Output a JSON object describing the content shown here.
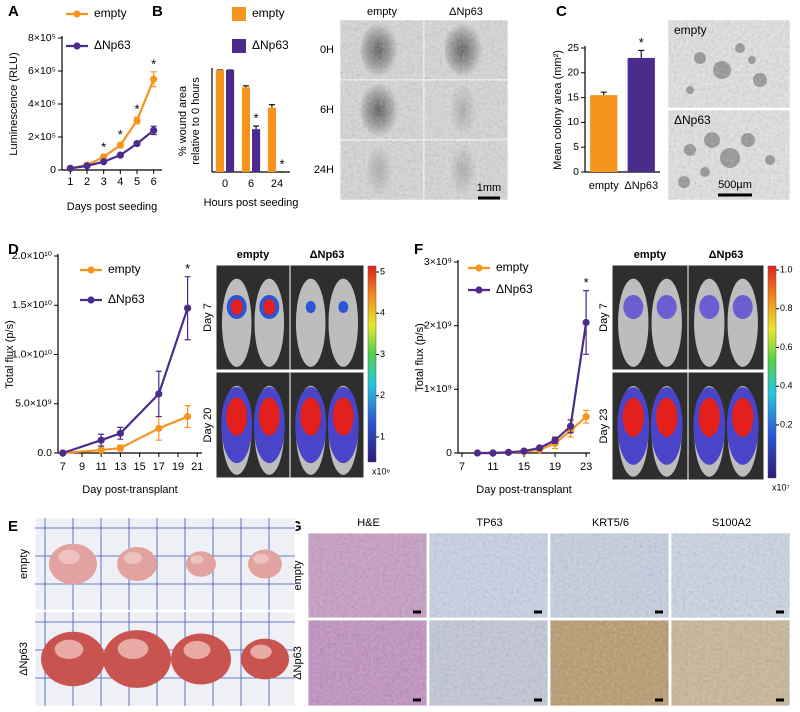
{
  "panel_labels": [
    "A",
    "B",
    "C",
    "D",
    "E",
    "F",
    "G"
  ],
  "chart_data": [
    {
      "type": "line",
      "xlabel": "Days post seeding",
      "ylabel": "Luminescence (RLU)",
      "x": [
        1,
        2,
        3,
        4,
        5,
        6
      ],
      "xlim": [
        0.5,
        6.5
      ],
      "xticks": [
        1,
        2,
        3,
        4,
        5,
        6
      ],
      "ylim": [
        0,
        800000
      ],
      "yticks": [
        0,
        {
          "value": 200000,
          "label": "2×10⁵"
        },
        {
          "value": 400000,
          "label": "4×10⁵"
        },
        {
          "value": 600000,
          "label": "6×10⁵"
        },
        {
          "value": 800000,
          "label": "8×10⁵"
        }
      ],
      "series": [
        {
          "name": "empty",
          "color": "#f7941d",
          "values": [
            10000,
            30000,
            80000,
            150000,
            300000,
            550000
          ],
          "errors": [
            3000,
            5000,
            10000,
            15000,
            20000,
            45000
          ],
          "significance": [
            null,
            null,
            "*",
            "*",
            "*",
            "*"
          ]
        },
        {
          "name": "ΔNp63",
          "color": "#4b2c8c",
          "values": [
            10000,
            25000,
            50000,
            90000,
            160000,
            240000
          ],
          "errors": [
            2000,
            3000,
            5000,
            8000,
            12000,
            25000
          ]
        }
      ]
    },
    {
      "type": "bar",
      "xlabel": "Hours post seeding",
      "ylabel": [
        "% wound area",
        "relative to 0 hours"
      ],
      "categories": [
        "0",
        "6",
        "24"
      ],
      "ylim": [
        0,
        100
      ],
      "series": [
        {
          "name": "empty",
          "color": "#f7941d",
          "values": [
            100,
            83,
            63
          ],
          "errors": [
            0,
            1.5,
            3
          ]
        },
        {
          "name": "ΔNp63",
          "color": "#4b2c8c",
          "values": [
            100,
            42,
            0
          ],
          "errors": [
            0,
            3,
            0
          ],
          "significance": [
            null,
            "*",
            "*"
          ]
        }
      ]
    },
    {
      "type": "bar",
      "ylabel": "Mean colony area (mm²)",
      "categories": [
        "empty",
        "ΔNp63"
      ],
      "values": [
        15.5,
        23
      ],
      "errors": [
        0.6,
        1.5
      ],
      "colors": [
        "#f7941d",
        "#4b2c8c"
      ],
      "significance": [
        null,
        "*"
      ],
      "ylim": [
        0,
        25
      ],
      "yticks": [
        0,
        5,
        10,
        15,
        20,
        25
      ]
    },
    {
      "type": "line",
      "xlabel": "Day post-transplant",
      "ylabel": "Total flux (p/s)",
      "x": [
        7,
        11,
        13,
        17,
        20
      ],
      "xlim": [
        6.5,
        21.5
      ],
      "xticks": [
        7,
        9,
        11,
        13,
        15,
        17,
        19,
        21
      ],
      "ylim": [
        0,
        20000000000
      ],
      "yticks": [
        {
          "value": 0,
          "label": "0.0"
        },
        {
          "value": 5000000000,
          "label": "5.0×10⁹"
        },
        {
          "value": 10000000000,
          "label": "1.0×10¹⁰"
        },
        {
          "value": 15000000000,
          "label": "1.5×10¹⁰"
        },
        {
          "value": 20000000000,
          "label": "2.0×10¹⁰"
        }
      ],
      "series": [
        {
          "name": "empty",
          "color": "#f7941d",
          "values": [
            0,
            300000000,
            500000000,
            2500000000,
            3700000000
          ],
          "errors": [
            0,
            200000000,
            300000000,
            1200000000,
            1100000000
          ]
        },
        {
          "name": "ΔNp63",
          "color": "#4b2c8c",
          "values": [
            0,
            1300000000,
            2000000000,
            6000000000,
            14700000000
          ],
          "errors": [
            0,
            600000000,
            600000000,
            2300000000,
            3200000000
          ],
          "significance": [
            null,
            null,
            null,
            null,
            "*"
          ]
        }
      ]
    },
    {
      "type": "line",
      "xlabel": "Day post-transplant",
      "ylabel": "Total flux (p/s)",
      "x": [
        9,
        11,
        13,
        15,
        17,
        19,
        21,
        23
      ],
      "xlim": [
        6.5,
        23.5
      ],
      "xticks": [
        7,
        11,
        15,
        19,
        23
      ],
      "ylim": [
        0,
        3000000000
      ],
      "yticks": [
        0,
        {
          "value": 1000000000,
          "label": "1×10⁹"
        },
        {
          "value": 2000000000,
          "label": "2×10⁹"
        },
        {
          "value": 3000000000,
          "label": "3×10⁹"
        }
      ],
      "series": [
        {
          "name": "empty",
          "color": "#f7941d",
          "values": [
            0,
            0,
            10000000,
            20000000,
            50000000,
            150000000,
            350000000,
            570000000
          ],
          "errors": [
            0,
            0,
            0,
            10000000,
            30000000,
            80000000,
            100000000,
            100000000
          ]
        },
        {
          "name": "ΔNp63",
          "color": "#4b2c8c",
          "values": [
            0,
            0,
            10000000,
            30000000,
            80000000,
            200000000,
            420000000,
            2050000000
          ],
          "errors": [
            0,
            0,
            0,
            10000000,
            20000000,
            50000000,
            100000000,
            500000000
          ],
          "significance": [
            null,
            null,
            null,
            null,
            null,
            null,
            null,
            "*"
          ]
        }
      ]
    }
  ],
  "images": {
    "wound": {
      "columns": [
        "empty",
        "ΔNp63"
      ],
      "rows": [
        "0H",
        "6H",
        "24H"
      ],
      "scale": "1mm"
    },
    "colony": {
      "panels": [
        "empty",
        "ΔNp63"
      ],
      "scale": "500µm"
    },
    "imaging_D": {
      "columns": [
        "empty",
        "ΔNp63"
      ],
      "rows": [
        "Day 7",
        "Day 20"
      ],
      "colorbar_ticks": [
        1,
        2,
        3,
        4,
        5
      ],
      "colorbar_unit": "x10⁶"
    },
    "imaging_F": {
      "columns": [
        "empty",
        "ΔNp63"
      ],
      "rows": [
        "Day 7",
        "Day 23"
      ],
      "colorbar_ticks": [
        0.2,
        0.4,
        0.6,
        0.8,
        {
          "value": 1,
          "label": "1.0"
        }
      ],
      "colorbar_unit": "x10⁷"
    },
    "tumors": {
      "rows": [
        "empty",
        "ΔNp63"
      ]
    },
    "ihc": {
      "columns": [
        "H&E",
        "TP63",
        "KRT5/6",
        "S100A2"
      ],
      "rows": [
        "empty",
        "ΔNp63"
      ]
    }
  }
}
